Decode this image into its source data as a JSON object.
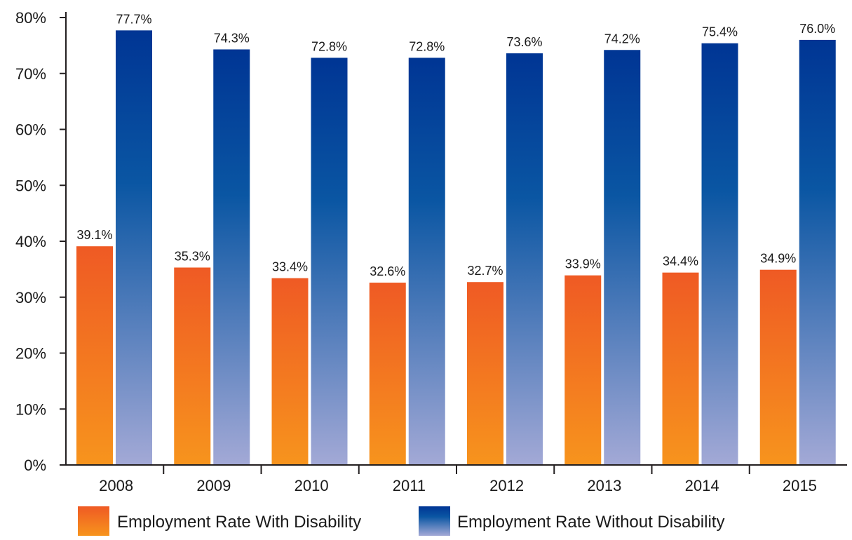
{
  "chart_data": {
    "type": "bar",
    "categories": [
      "2008",
      "2009",
      "2010",
      "2011",
      "2012",
      "2013",
      "2014",
      "2015"
    ],
    "series": [
      {
        "name": "Employment Rate With Disability",
        "values": [
          39.1,
          35.3,
          33.4,
          32.6,
          32.7,
          33.9,
          34.4,
          34.9
        ],
        "labels": [
          "39.1%",
          "35.3%",
          "33.4%",
          "32.6%",
          "32.7%",
          "33.9%",
          "34.4%",
          "34.9%"
        ]
      },
      {
        "name": "Employment Rate Without Disability",
        "values": [
          77.7,
          74.3,
          72.8,
          72.8,
          73.6,
          74.2,
          75.4,
          76.0
        ],
        "labels": [
          "77.7%",
          "74.3%",
          "72.8%",
          "72.8%",
          "73.6%",
          "74.2%",
          "75.4%",
          "76.0%"
        ]
      }
    ],
    "ylim": [
      0,
      80
    ],
    "yticks": [
      "0%",
      "10%",
      "20%",
      "30%",
      "40%",
      "50%",
      "60%",
      "70%",
      "80%"
    ],
    "title": "",
    "xlabel": "",
    "ylabel": "",
    "grid": false,
    "legend_position": "bottom",
    "colors": {
      "with_disability_top": "#ef5a24",
      "with_disability_bottom": "#f7941d",
      "without_disability_top": "#003594",
      "without_disability_mid": "#0a56a3",
      "without_disability_bottom": "#a3a9d6",
      "axis": "#231f20"
    }
  }
}
